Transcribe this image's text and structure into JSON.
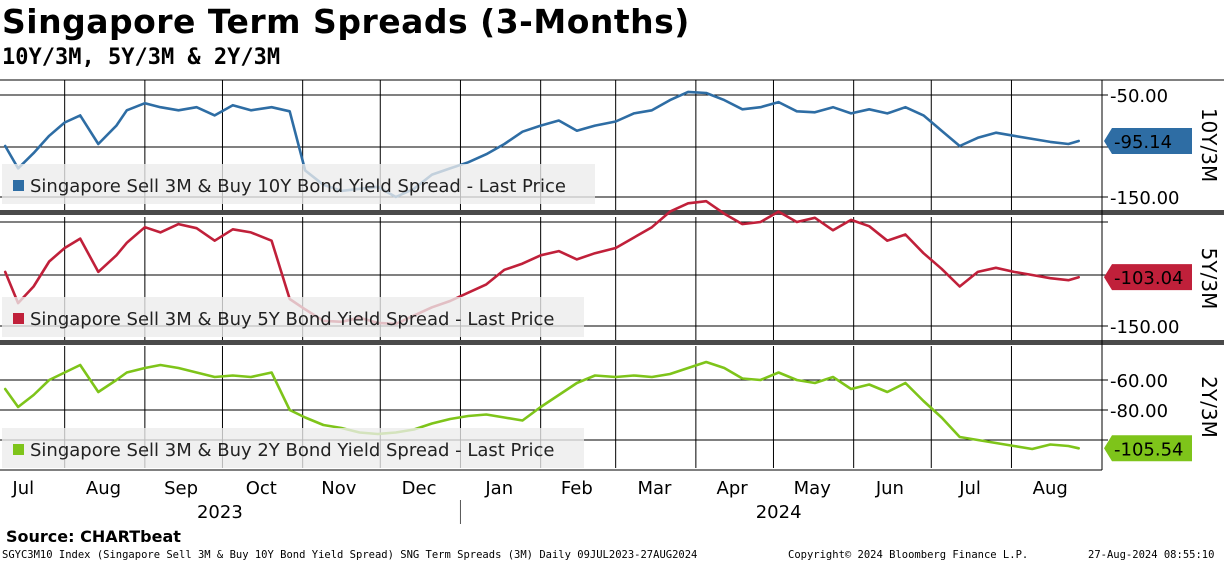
{
  "header": {
    "title": "Singapore Term Spreads (3-Months)",
    "subtitle": "10Y/3M, 5Y/3M & 2Y/3M"
  },
  "source": "Source: CHARTbeat",
  "footer": {
    "left": "SGYC3M10 Index (Singapore Sell 3M & Buy 10Y Bond Yield Spread) SNG Term Spreads (3M)  Daily 09JUL2023-27AUG2024",
    "center": "Copyright© 2024 Bloomberg Finance L.P.",
    "right": "27-Aug-2024 08:55:10"
  },
  "chart_data": [
    {
      "type": "line",
      "panel_label": "10Y/3M",
      "legend": "Singapore Sell 3M & Buy 10Y Bond Yield Spread - Last Price",
      "last_value": "-95.14",
      "color": "#2e6da4",
      "y_ticks": [
        "-50.00",
        "-150.00"
      ],
      "ylim": [
        -160,
        -35
      ],
      "x": [
        "2023-07-09",
        "2023-07-14",
        "2023-07-20",
        "2023-07-26",
        "2023-08-01",
        "2023-08-07",
        "2023-08-14",
        "2023-08-21",
        "2023-08-25",
        "2023-09-01",
        "2023-09-07",
        "2023-09-14",
        "2023-09-21",
        "2023-09-28",
        "2023-10-05",
        "2023-10-12",
        "2023-10-20",
        "2023-10-27",
        "2023-11-02",
        "2023-11-09",
        "2023-11-16",
        "2023-11-23",
        "2023-11-30",
        "2023-12-07",
        "2023-12-14",
        "2023-12-21",
        "2023-12-28",
        "2024-01-04",
        "2024-01-11",
        "2024-01-18",
        "2024-01-25",
        "2024-02-01",
        "2024-02-08",
        "2024-02-15",
        "2024-02-22",
        "2024-03-01",
        "2024-03-08",
        "2024-03-15",
        "2024-03-22",
        "2024-03-29",
        "2024-04-05",
        "2024-04-12",
        "2024-04-19",
        "2024-04-26",
        "2024-05-03",
        "2024-05-10",
        "2024-05-17",
        "2024-05-24",
        "2024-05-31",
        "2024-06-07",
        "2024-06-14",
        "2024-06-21",
        "2024-06-28",
        "2024-07-05",
        "2024-07-12",
        "2024-07-19",
        "2024-07-26",
        "2024-08-02",
        "2024-08-09",
        "2024-08-16",
        "2024-08-23",
        "2024-08-27"
      ],
      "values": [
        -100,
        -122,
        -107,
        -90,
        -77,
        -70,
        -98,
        -80,
        -65,
        -58,
        -62,
        -65,
        -62,
        -70,
        -60,
        -65,
        -62,
        -66,
        -124,
        -138,
        -144,
        -142,
        -140,
        -150,
        -142,
        -128,
        -122,
        -116,
        -108,
        -98,
        -86,
        -80,
        -75,
        -85,
        -80,
        -76,
        -68,
        -65,
        -55,
        -47,
        -48,
        -55,
        -64,
        -62,
        -57,
        -66,
        -67,
        -62,
        -68,
        -64,
        -68,
        -62,
        -70,
        -85,
        -100,
        -92,
        -87,
        -90,
        -93,
        -96,
        -98,
        -95.14
      ]
    },
    {
      "type": "line",
      "panel_label": "5Y/3M",
      "legend": "Singapore Sell 3M & Buy 5Y Bond Yield Spread - Last Price",
      "last_value": "-103.04",
      "color": "#c0203a",
      "y_ticks": [
        "-150.00"
      ],
      "ylim": [
        -160,
        -10
      ],
      "x": [
        "2023-07-09",
        "2023-07-14",
        "2023-07-20",
        "2023-07-26",
        "2023-08-01",
        "2023-08-07",
        "2023-08-14",
        "2023-08-21",
        "2023-08-25",
        "2023-09-01",
        "2023-09-07",
        "2023-09-14",
        "2023-09-21",
        "2023-09-28",
        "2023-10-05",
        "2023-10-12",
        "2023-10-20",
        "2023-10-27",
        "2023-11-02",
        "2023-11-09",
        "2023-11-16",
        "2023-11-23",
        "2023-11-30",
        "2023-12-07",
        "2023-12-14",
        "2023-12-21",
        "2023-12-28",
        "2024-01-04",
        "2024-01-11",
        "2024-01-18",
        "2024-01-25",
        "2024-02-01",
        "2024-02-08",
        "2024-02-15",
        "2024-02-22",
        "2024-03-01",
        "2024-03-08",
        "2024-03-15",
        "2024-03-22",
        "2024-03-29",
        "2024-04-05",
        "2024-04-12",
        "2024-04-19",
        "2024-04-26",
        "2024-05-03",
        "2024-05-10",
        "2024-05-17",
        "2024-05-24",
        "2024-05-31",
        "2024-06-07",
        "2024-06-14",
        "2024-06-21",
        "2024-06-28",
        "2024-07-05",
        "2024-07-12",
        "2024-07-19",
        "2024-07-26",
        "2024-08-02",
        "2024-08-09",
        "2024-08-16",
        "2024-08-23",
        "2024-08-27"
      ],
      "values": [
        -98,
        -128,
        -112,
        -88,
        -75,
        -66,
        -98,
        -82,
        -70,
        -55,
        -60,
        -52,
        -56,
        -68,
        -57,
        -60,
        -68,
        -124,
        -134,
        -145,
        -146,
        -142,
        -147,
        -148,
        -140,
        -132,
        -126,
        -118,
        -110,
        -96,
        -90,
        -82,
        -78,
        -86,
        -80,
        -75,
        -65,
        -55,
        -40,
        -32,
        -30,
        -42,
        -52,
        -50,
        -40,
        -50,
        -46,
        -58,
        -48,
        -54,
        -68,
        -62,
        -80,
        -95,
        -112,
        -98,
        -94,
        -98,
        -101,
        -104,
        -106,
        -103.04
      ]
    },
    {
      "type": "line",
      "panel_label": "2Y/3M",
      "legend": "Singapore Sell 3M & Buy 2Y Bond Yield Spread - Last Price",
      "last_value": "-105.54",
      "color": "#7ec41a",
      "y_ticks": [
        "-60.00",
        "-80.00"
      ],
      "ylim": [
        -117,
        -40
      ],
      "x": [
        "2023-07-09",
        "2023-07-14",
        "2023-07-20",
        "2023-07-26",
        "2023-08-01",
        "2023-08-07",
        "2023-08-14",
        "2023-08-21",
        "2023-08-25",
        "2023-09-01",
        "2023-09-07",
        "2023-09-14",
        "2023-09-21",
        "2023-09-28",
        "2023-10-05",
        "2023-10-12",
        "2023-10-20",
        "2023-10-27",
        "2023-11-02",
        "2023-11-09",
        "2023-11-16",
        "2023-11-23",
        "2023-11-30",
        "2023-12-07",
        "2023-12-14",
        "2023-12-21",
        "2023-12-28",
        "2024-01-04",
        "2024-01-11",
        "2024-01-18",
        "2024-01-25",
        "2024-02-01",
        "2024-02-08",
        "2024-02-15",
        "2024-02-22",
        "2024-03-01",
        "2024-03-08",
        "2024-03-15",
        "2024-03-22",
        "2024-03-29",
        "2024-04-05",
        "2024-04-12",
        "2024-04-19",
        "2024-04-26",
        "2024-05-03",
        "2024-05-10",
        "2024-05-17",
        "2024-05-24",
        "2024-05-31",
        "2024-06-07",
        "2024-06-14",
        "2024-06-21",
        "2024-06-28",
        "2024-07-05",
        "2024-07-12",
        "2024-07-19",
        "2024-07-26",
        "2024-08-02",
        "2024-08-09",
        "2024-08-16",
        "2024-08-23",
        "2024-08-27"
      ],
      "values": [
        -66,
        -78,
        -70,
        -60,
        -55,
        -50,
        -68,
        -60,
        -55,
        -52,
        -50,
        -52,
        -55,
        -58,
        -57,
        -58,
        -55,
        -80,
        -85,
        -90,
        -92,
        -95,
        -96,
        -95,
        -93,
        -89,
        -86,
        -84,
        -83,
        -85,
        -87,
        -78,
        -70,
        -62,
        -57,
        -58,
        -57,
        -58,
        -56,
        -52,
        -48,
        -52,
        -59,
        -60,
        -55,
        -60,
        -62,
        -58,
        -66,
        -63,
        -68,
        -62,
        -74,
        -85,
        -98,
        -100,
        -102,
        -104,
        -106,
        -103,
        -104,
        -105.54
      ]
    }
  ],
  "x_axis": {
    "months": [
      "Jul",
      "Aug",
      "Sep",
      "Oct",
      "Nov",
      "Dec",
      "Jan",
      "Feb",
      "Mar",
      "Apr",
      "May",
      "Jun",
      "Jul",
      "Aug"
    ],
    "years": [
      "2023",
      "2024"
    ]
  }
}
